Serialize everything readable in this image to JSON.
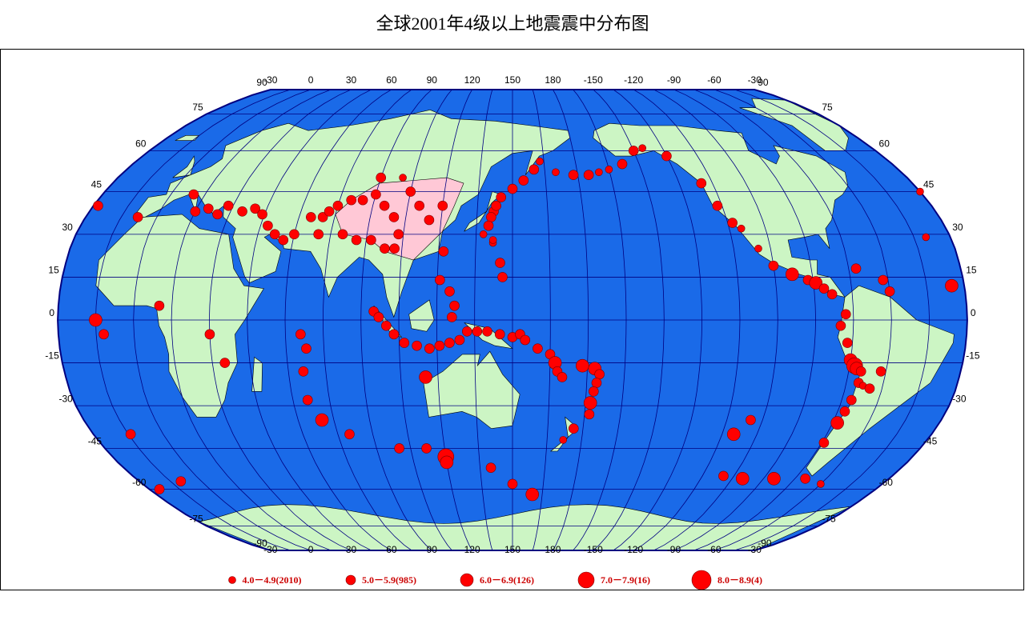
{
  "title": "全球2001年4级以上地震震中分布图",
  "map": {
    "longitude_labels": [
      -30,
      0,
      30,
      60,
      90,
      120,
      150,
      180,
      -150,
      -120,
      -90,
      -60,
      -30
    ],
    "latitude_labels": [
      90,
      75,
      60,
      45,
      30,
      15,
      0,
      -15,
      -30,
      -45,
      -60,
      -75,
      -90
    ],
    "legend": [
      "4.0－4.9(2010)",
      "5.0－5.9(985)",
      "6.0－6.9(126)",
      "7.0－7.9(16)",
      "8.0－8.9(4)"
    ],
    "quakes": [
      [
        142,
        38,
        1
      ],
      [
        143,
        40,
        1
      ],
      [
        141,
        36,
        1
      ],
      [
        145,
        43,
        1
      ],
      [
        150,
        46,
        1
      ],
      [
        155,
        49,
        1
      ],
      [
        160,
        53,
        1
      ],
      [
        163,
        56,
        0
      ],
      [
        140,
        33,
        1
      ],
      [
        138,
        30,
        0
      ],
      [
        142,
        27,
        0
      ],
      [
        170,
        52,
        0
      ],
      [
        178,
        51,
        1
      ],
      [
        -175,
        51,
        1
      ],
      [
        -170,
        52,
        0
      ],
      [
        -165,
        53,
        0
      ],
      [
        -158,
        55,
        1
      ],
      [
        -150,
        60,
        1
      ],
      [
        -145,
        61,
        0
      ],
      [
        -135,
        58,
        1
      ],
      [
        -125,
        48,
        1
      ],
      [
        -122,
        40,
        1
      ],
      [
        -118,
        34,
        1
      ],
      [
        -115,
        32,
        0
      ],
      [
        -110,
        25,
        0
      ],
      [
        -105,
        19,
        1
      ],
      [
        -98,
        16,
        2
      ],
      [
        -92,
        14,
        1
      ],
      [
        -89,
        13,
        2
      ],
      [
        -86,
        11,
        1
      ],
      [
        -83,
        9,
        1
      ],
      [
        -78,
        2,
        1
      ],
      [
        -80,
        -2,
        1
      ],
      [
        -77,
        -8,
        1
      ],
      [
        -75,
        -14,
        2
      ],
      [
        -73,
        -16,
        3
      ],
      [
        -72,
        -17,
        2
      ],
      [
        -70,
        -18,
        1
      ],
      [
        -70,
        -22,
        1
      ],
      [
        -68,
        -23,
        0
      ],
      [
        -71,
        -28,
        1
      ],
      [
        -72,
        -32,
        1
      ],
      [
        -73,
        -36,
        2
      ],
      [
        -74,
        -43,
        1
      ],
      [
        -62,
        -18,
        1
      ],
      [
        -65,
        -24,
        1
      ],
      [
        -62,
        14,
        1
      ],
      [
        -72,
        18,
        1
      ],
      [
        -60,
        10,
        1
      ],
      [
        -30,
        45,
        0
      ],
      [
        -28,
        40,
        1
      ],
      [
        -40,
        29,
        0
      ],
      [
        -35,
        12,
        2
      ],
      [
        -15,
        0,
        2
      ],
      [
        -12,
        -5,
        1
      ],
      [
        -14,
        -40,
        1
      ],
      [
        15,
        38,
        1
      ],
      [
        20,
        39,
        1
      ],
      [
        25,
        37,
        1
      ],
      [
        28,
        40,
        1
      ],
      [
        35,
        38,
        1
      ],
      [
        40,
        39,
        1
      ],
      [
        44,
        37,
        1
      ],
      [
        48,
        33,
        1
      ],
      [
        52,
        30,
        1
      ],
      [
        56,
        28,
        1
      ],
      [
        60,
        30,
        1
      ],
      [
        -8,
        36,
        1
      ],
      [
        10,
        44,
        1
      ],
      [
        65,
        36,
        1
      ],
      [
        70,
        36,
        1
      ],
      [
        72,
        38,
        1
      ],
      [
        75,
        40,
        1
      ],
      [
        80,
        42,
        1
      ],
      [
        85,
        42,
        1
      ],
      [
        90,
        44,
        1
      ],
      [
        95,
        40,
        1
      ],
      [
        100,
        36,
        1
      ],
      [
        103,
        30,
        1
      ],
      [
        102,
        25,
        1
      ],
      [
        98,
        25,
        1
      ],
      [
        92,
        28,
        1
      ],
      [
        86,
        28,
        1
      ],
      [
        80,
        30,
        1
      ],
      [
        70,
        30,
        1
      ],
      [
        90,
        50,
        1
      ],
      [
        100,
        50,
        0
      ],
      [
        105,
        45,
        1
      ],
      [
        110,
        40,
        1
      ],
      [
        115,
        35,
        1
      ],
      [
        120,
        40,
        1
      ],
      [
        122,
        24,
        1
      ],
      [
        121,
        14,
        1
      ],
      [
        125,
        10,
        1
      ],
      [
        127,
        5,
        1
      ],
      [
        126,
        1,
        1
      ],
      [
        95,
        3,
        1
      ],
      [
        97,
        1,
        1
      ],
      [
        100,
        -2,
        1
      ],
      [
        103,
        -5,
        1
      ],
      [
        107,
        -8,
        1
      ],
      [
        112,
        -9,
        1
      ],
      [
        117,
        -10,
        1
      ],
      [
        121,
        -9,
        1
      ],
      [
        125,
        -8,
        1
      ],
      [
        129,
        -7,
        1
      ],
      [
        132,
        -4,
        1
      ],
      [
        136,
        -4,
        1
      ],
      [
        140,
        -4,
        1
      ],
      [
        145,
        -5,
        1
      ],
      [
        150,
        -6,
        1
      ],
      [
        153,
        -5,
        1
      ],
      [
        155,
        -7,
        1
      ],
      [
        160,
        -10,
        1
      ],
      [
        165,
        -12,
        1
      ],
      [
        167,
        -15,
        2
      ],
      [
        168,
        -18,
        1
      ],
      [
        170,
        -20,
        1
      ],
      [
        178,
        -16,
        2
      ],
      [
        -177,
        -17,
        2
      ],
      [
        -175,
        -19,
        1
      ],
      [
        -176,
        -22,
        1
      ],
      [
        -177,
        -25,
        1
      ],
      [
        -178,
        -29,
        2
      ],
      [
        -178,
        -33,
        1
      ],
      [
        176,
        -38,
        1
      ],
      [
        172,
        -42,
        0
      ],
      [
        145,
        20,
        1
      ],
      [
        146,
        15,
        1
      ],
      [
        142,
        28,
        0
      ],
      [
        66,
        -5,
        1
      ],
      [
        68,
        -10,
        1
      ],
      [
        66,
        -18,
        1
      ],
      [
        66,
        -28,
        1
      ],
      [
        70,
        -35,
        2
      ],
      [
        80,
        -40,
        1
      ],
      [
        100,
        -45,
        1
      ],
      [
        120,
        -48,
        3
      ],
      [
        120,
        -50,
        2
      ],
      [
        140,
        -52,
        1
      ],
      [
        150,
        -58,
        1
      ],
      [
        160,
        -62,
        2
      ],
      [
        -110,
        -35,
        1
      ],
      [
        -115,
        -40,
        2
      ],
      [
        -110,
        -55,
        1
      ],
      [
        -100,
        -56,
        2
      ],
      [
        -85,
        -56,
        2
      ],
      [
        -70,
        -56,
        1
      ],
      [
        -60,
        -58,
        0
      ],
      [
        30,
        -5,
        1
      ],
      [
        35,
        -15,
        1
      ],
      [
        10,
        5,
        1
      ],
      [
        -25,
        -60,
        1
      ],
      [
        -10,
        -57,
        1
      ],
      [
        115,
        -20,
        2
      ],
      [
        112,
        -45,
        1
      ]
    ]
  }
}
